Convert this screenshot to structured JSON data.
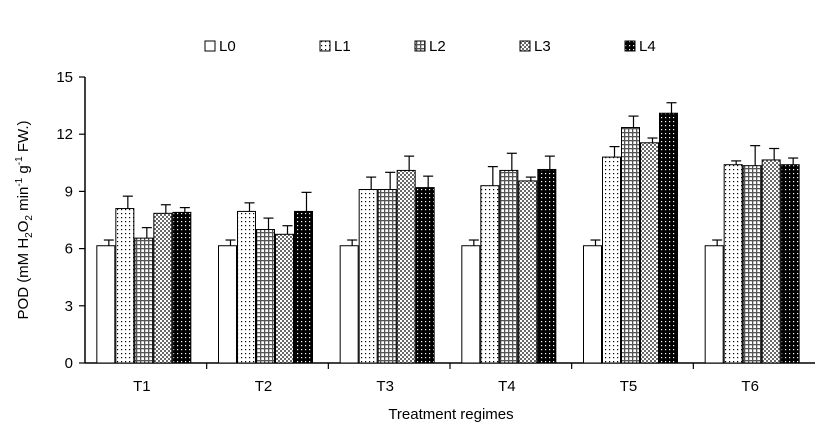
{
  "chart_data": {
    "type": "bar",
    "title": "",
    "xlabel": "Treatment regimes",
    "ylabel": {
      "base": "POD (mM H",
      "sub1": "2",
      "mid1": "O",
      "sub2": "2",
      "mid2": " min",
      "sup1": "-1",
      "mid3": " g",
      "sup2": "-1",
      "tail": " FW.)"
    },
    "ylim": [
      0,
      15
    ],
    "yticks": [
      0,
      3,
      6,
      9,
      12,
      15
    ],
    "categories": [
      "T1",
      "T2",
      "T3",
      "T4",
      "T5",
      "T6"
    ],
    "legend_position": "top",
    "series": [
      {
        "name": "L0",
        "pattern": "blank",
        "values": [
          6.15,
          6.15,
          6.15,
          6.15,
          6.15,
          6.15
        ],
        "errors": [
          0.3,
          0.3,
          0.3,
          0.3,
          0.3,
          0.3
        ]
      },
      {
        "name": "L1",
        "pattern": "dots",
        "values": [
          8.1,
          7.95,
          9.1,
          9.3,
          10.8,
          10.4
        ],
        "errors": [
          0.65,
          0.45,
          0.65,
          1.0,
          0.55,
          0.2
        ]
      },
      {
        "name": "L2",
        "pattern": "grid",
        "values": [
          6.55,
          7.0,
          9.1,
          10.1,
          12.35,
          10.35
        ],
        "errors": [
          0.55,
          0.6,
          0.9,
          0.9,
          0.6,
          1.05
        ]
      },
      {
        "name": "L3",
        "pattern": "checker",
        "values": [
          7.85,
          6.75,
          10.1,
          9.55,
          11.55,
          10.65
        ],
        "errors": [
          0.45,
          0.45,
          0.75,
          0.2,
          0.25,
          0.6
        ]
      },
      {
        "name": "L4",
        "pattern": "dense",
        "values": [
          7.9,
          7.95,
          9.2,
          10.15,
          13.1,
          10.4
        ],
        "errors": [
          0.25,
          1.0,
          0.6,
          0.7,
          0.55,
          0.35
        ]
      }
    ]
  }
}
